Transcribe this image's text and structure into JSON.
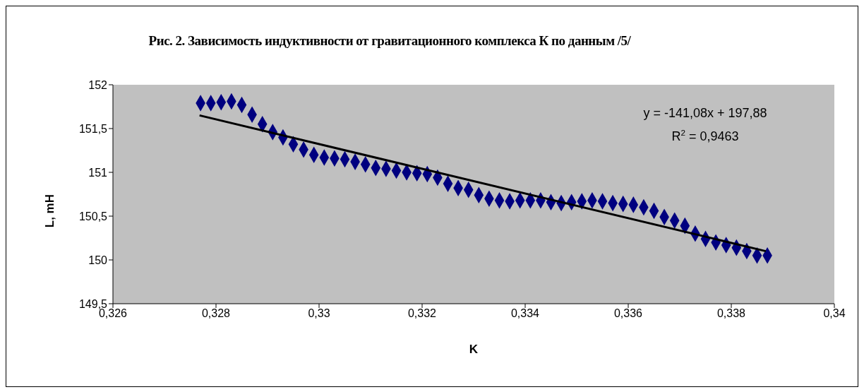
{
  "chart_data": {
    "type": "scatter",
    "title": "Рис. 2. Зависимость индуктивности от гравитационного комплекса К по данным /5/",
    "xlabel": "K",
    "ylabel": "L, mH",
    "annotations": [
      "y = -141,08x + 197,88",
      "R$^{2}$ = 0,9463"
    ],
    "xlim": [
      0.326,
      0.34
    ],
    "ylim": [
      149.5,
      152
    ],
    "xticks": [
      {
        "value": 0.326,
        "label": "0,326"
      },
      {
        "value": 0.328,
        "label": "0,328"
      },
      {
        "value": 0.33,
        "label": "0,33"
      },
      {
        "value": 0.332,
        "label": "0,332"
      },
      {
        "value": 0.334,
        "label": "0,334"
      },
      {
        "value": 0.336,
        "label": "0,336"
      },
      {
        "value": 0.338,
        "label": "0,338"
      },
      {
        "value": 0.34,
        "label": "0,34"
      }
    ],
    "yticks": [
      {
        "value": 149.5,
        "label": "149,5"
      },
      150,
      {
        "value": 150.5,
        "label": "150,5"
      },
      151,
      {
        "value": 151.5,
        "label": "151,5"
      },
      152
    ],
    "grid": false,
    "series": [
      {
        "marker": "diamond",
        "color": "#000080",
        "x": [
          0.3277,
          0.3279,
          0.3281,
          0.3283,
          0.3285,
          0.3287,
          0.3289,
          0.3291,
          0.3293,
          0.3295,
          0.3297,
          0.3299,
          0.3301,
          0.3303,
          0.3305,
          0.3307,
          0.3309,
          0.3311,
          0.3313,
          0.3315,
          0.3317,
          0.3319,
          0.3321,
          0.3323,
          0.3325,
          0.3327,
          0.3329,
          0.3331,
          0.3333,
          0.3335,
          0.3337,
          0.3339,
          0.3341,
          0.3343,
          0.3345,
          0.3347,
          0.3349,
          0.3351,
          0.3353,
          0.3355,
          0.3357,
          0.3359,
          0.3361,
          0.3363,
          0.3365,
          0.3367,
          0.3369,
          0.3371,
          0.3373,
          0.3375,
          0.3377,
          0.3379,
          0.3381,
          0.3383,
          0.3385,
          0.3387
        ],
        "values": [
          151.79,
          151.79,
          151.8,
          151.81,
          151.77,
          151.66,
          151.55,
          151.46,
          151.4,
          151.32,
          151.26,
          151.2,
          151.17,
          151.16,
          151.15,
          151.12,
          151.09,
          151.05,
          151.04,
          151.02,
          151.0,
          150.99,
          150.98,
          150.94,
          150.87,
          150.82,
          150.8,
          150.74,
          150.7,
          150.68,
          150.67,
          150.68,
          150.68,
          150.68,
          150.66,
          150.65,
          150.66,
          150.67,
          150.68,
          150.67,
          150.65,
          150.64,
          150.63,
          150.6,
          150.56,
          150.49,
          150.45,
          150.39,
          150.3,
          150.24,
          150.2,
          150.17,
          150.14,
          150.1,
          150.05,
          150.05
        ]
      },
      {
        "type": "line",
        "marker": "none",
        "color": "#000000",
        "x": [
          0.32768,
          0.33867
        ],
        "values": [
          151.65,
          150.1
        ]
      }
    ]
  }
}
